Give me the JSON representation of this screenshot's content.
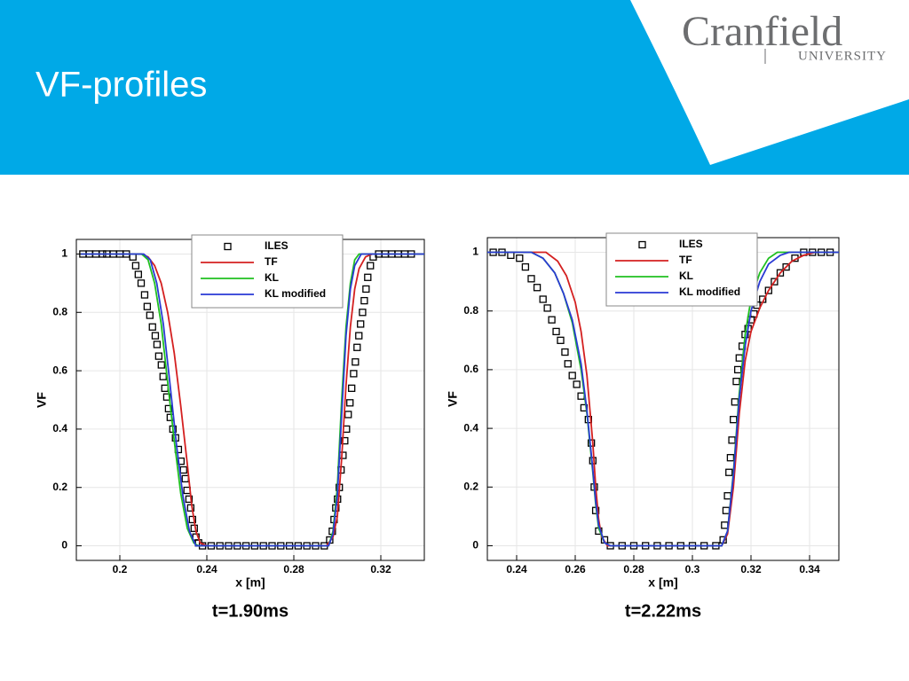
{
  "slide": {
    "title": "VF-profiles",
    "logo": {
      "name": "Cranfield",
      "sub": "UNIVERSITY"
    }
  },
  "chart_data": [
    {
      "type": "line",
      "caption": "t=1.90ms",
      "xlabel": "x [m]",
      "ylabel": "VF",
      "xlim": [
        0.18,
        0.34
      ],
      "ylim": [
        -0.05,
        1.05
      ],
      "xticks": [
        0.2,
        0.24,
        0.28,
        0.32
      ],
      "yticks": [
        0,
        0.2,
        0.4,
        0.6,
        0.8,
        1
      ],
      "grid": true,
      "legend": "upper-right",
      "series": [
        {
          "name": "ILES",
          "color": "#000000",
          "mode": "markers",
          "x": [
            0.183,
            0.186,
            0.189,
            0.192,
            0.194,
            0.197,
            0.2,
            0.203,
            0.206,
            0.2073,
            0.2085,
            0.2098,
            0.2114,
            0.2126,
            0.2138,
            0.215,
            0.2163,
            0.2171,
            0.2179,
            0.2191,
            0.2199,
            0.2207,
            0.2216,
            0.2224,
            0.2232,
            0.2244,
            0.2256,
            0.2269,
            0.2281,
            0.2293,
            0.2301,
            0.2309,
            0.2318,
            0.2326,
            0.2334,
            0.2342,
            0.235,
            0.2362,
            0.238,
            0.242,
            0.246,
            0.25,
            0.254,
            0.258,
            0.262,
            0.266,
            0.27,
            0.274,
            0.278,
            0.282,
            0.286,
            0.29,
            0.294,
            0.2965,
            0.2977,
            0.2985,
            0.2993,
            0.3001,
            0.3009,
            0.3017,
            0.3026,
            0.3034,
            0.3042,
            0.305,
            0.3058,
            0.3066,
            0.3075,
            0.3083,
            0.3091,
            0.3099,
            0.3107,
            0.3116,
            0.3124,
            0.3132,
            0.314,
            0.3152,
            0.3165,
            0.319,
            0.322,
            0.325,
            0.328,
            0.331,
            0.334
          ],
          "values": [
            1,
            1,
            1,
            1,
            1,
            1,
            1,
            1,
            0.99,
            0.96,
            0.93,
            0.9,
            0.86,
            0.82,
            0.79,
            0.75,
            0.72,
            0.69,
            0.65,
            0.62,
            0.58,
            0.54,
            0.51,
            0.47,
            0.44,
            0.4,
            0.37,
            0.33,
            0.29,
            0.26,
            0.23,
            0.19,
            0.16,
            0.13,
            0.09,
            0.06,
            0.03,
            0.01,
            0,
            0,
            0,
            0,
            0,
            0,
            0,
            0,
            0,
            0,
            0,
            0,
            0,
            0,
            0,
            0.02,
            0.05,
            0.09,
            0.13,
            0.16,
            0.2,
            0.26,
            0.31,
            0.36,
            0.4,
            0.45,
            0.49,
            0.54,
            0.59,
            0.63,
            0.68,
            0.72,
            0.76,
            0.8,
            0.84,
            0.88,
            0.92,
            0.96,
            0.99,
            1,
            1,
            1,
            1,
            1,
            1
          ]
        },
        {
          "name": "TF",
          "color": "#d42020",
          "mode": "lines",
          "x": [
            0.182,
            0.21,
            0.213,
            0.216,
            0.219,
            0.222,
            0.225,
            0.228,
            0.231,
            0.233,
            0.235,
            0.237,
            0.24,
            0.295,
            0.298,
            0.3,
            0.302,
            0.304,
            0.306,
            0.308,
            0.31,
            0.313,
            0.316,
            0.34
          ],
          "values": [
            1,
            1,
            0.99,
            0.96,
            0.9,
            0.8,
            0.66,
            0.48,
            0.28,
            0.14,
            0.05,
            0.01,
            0,
            0,
            0.03,
            0.1,
            0.3,
            0.55,
            0.75,
            0.88,
            0.95,
            0.99,
            1,
            1
          ]
        },
        {
          "name": "KL",
          "color": "#20c020",
          "mode": "lines",
          "x": [
            0.182,
            0.21,
            0.213,
            0.216,
            0.219,
            0.222,
            0.225,
            0.228,
            0.231,
            0.234,
            0.236,
            0.296,
            0.298,
            0.3,
            0.302,
            0.304,
            0.306,
            0.308,
            0.31,
            0.34
          ],
          "values": [
            1,
            1,
            0.98,
            0.9,
            0.76,
            0.56,
            0.36,
            0.18,
            0.06,
            0.01,
            0,
            0,
            0.05,
            0.2,
            0.5,
            0.75,
            0.9,
            0.98,
            1,
            1
          ]
        },
        {
          "name": "KL modified",
          "color": "#2a3ad4",
          "mode": "lines",
          "x": [
            0.182,
            0.211,
            0.214,
            0.217,
            0.22,
            0.223,
            0.226,
            0.229,
            0.232,
            0.235,
            0.296,
            0.298,
            0.3,
            0.302,
            0.304,
            0.306,
            0.308,
            0.311,
            0.34
          ],
          "values": [
            1,
            1,
            0.98,
            0.9,
            0.76,
            0.56,
            0.35,
            0.17,
            0.05,
            0,
            0,
            0.04,
            0.17,
            0.45,
            0.72,
            0.88,
            0.96,
            1,
            1
          ]
        }
      ]
    },
    {
      "type": "line",
      "caption": "t=2.22ms",
      "xlabel": "x [m]",
      "ylabel": "VF",
      "xlim": [
        0.23,
        0.35
      ],
      "ylim": [
        -0.05,
        1.05
      ],
      "xticks": [
        0.24,
        0.26,
        0.28,
        0.3,
        0.32,
        0.34
      ],
      "yticks": [
        0,
        0.2,
        0.4,
        0.6,
        0.8,
        1
      ],
      "grid": true,
      "legend": "upper-right",
      "series": [
        {
          "name": "ILES",
          "color": "#000000",
          "mode": "markers",
          "x": [
            0.232,
            0.235,
            0.238,
            0.241,
            0.243,
            0.245,
            0.247,
            0.249,
            0.2505,
            0.252,
            0.2535,
            0.255,
            0.2565,
            0.2575,
            0.259,
            0.2605,
            0.262,
            0.263,
            0.2645,
            0.2655,
            0.266,
            0.2665,
            0.267,
            0.268,
            0.27,
            0.272,
            0.276,
            0.28,
            0.284,
            0.288,
            0.292,
            0.296,
            0.3,
            0.304,
            0.308,
            0.3105,
            0.311,
            0.3115,
            0.312,
            0.3125,
            0.313,
            0.3135,
            0.314,
            0.3145,
            0.315,
            0.3155,
            0.316,
            0.317,
            0.318,
            0.319,
            0.32,
            0.321,
            0.322,
            0.324,
            0.326,
            0.328,
            0.33,
            0.332,
            0.335,
            0.338,
            0.341,
            0.344,
            0.347
          ],
          "values": [
            1,
            1,
            0.99,
            0.98,
            0.95,
            0.91,
            0.88,
            0.84,
            0.81,
            0.77,
            0.73,
            0.7,
            0.66,
            0.62,
            0.58,
            0.55,
            0.51,
            0.47,
            0.43,
            0.35,
            0.29,
            0.2,
            0.12,
            0.05,
            0.02,
            0,
            0,
            0,
            0,
            0,
            0,
            0,
            0,
            0,
            0,
            0.02,
            0.07,
            0.12,
            0.17,
            0.25,
            0.3,
            0.36,
            0.43,
            0.49,
            0.56,
            0.6,
            0.64,
            0.68,
            0.72,
            0.74,
            0.77,
            0.79,
            0.82,
            0.84,
            0.87,
            0.9,
            0.93,
            0.95,
            0.98,
            1,
            1,
            1,
            1
          ]
        },
        {
          "name": "TF",
          "color": "#d42020",
          "mode": "lines",
          "x": [
            0.23,
            0.25,
            0.254,
            0.257,
            0.26,
            0.262,
            0.264,
            0.266,
            0.267,
            0.268,
            0.269,
            0.271,
            0.31,
            0.312,
            0.314,
            0.316,
            0.318,
            0.32,
            0.323,
            0.326,
            0.33,
            0.334,
            0.338,
            0.342,
            0.35
          ],
          "values": [
            1,
            1,
            0.97,
            0.92,
            0.83,
            0.73,
            0.58,
            0.35,
            0.2,
            0.09,
            0.03,
            0,
            0,
            0.04,
            0.2,
            0.45,
            0.63,
            0.73,
            0.81,
            0.87,
            0.93,
            0.97,
            0.99,
            1,
            1
          ]
        },
        {
          "name": "KL",
          "color": "#20c020",
          "mode": "lines",
          "x": [
            0.23,
            0.245,
            0.249,
            0.253,
            0.256,
            0.259,
            0.262,
            0.264,
            0.266,
            0.267,
            0.268,
            0.27,
            0.272,
            0.31,
            0.312,
            0.314,
            0.316,
            0.318,
            0.32,
            0.323,
            0.326,
            0.329,
            0.35
          ],
          "values": [
            1,
            1,
            0.98,
            0.93,
            0.86,
            0.76,
            0.6,
            0.45,
            0.25,
            0.14,
            0.06,
            0.01,
            0,
            0,
            0.05,
            0.25,
            0.52,
            0.72,
            0.84,
            0.93,
            0.98,
            1,
            1
          ]
        },
        {
          "name": "KL modified",
          "color": "#2a3ad4",
          "mode": "lines",
          "x": [
            0.23,
            0.245,
            0.249,
            0.253,
            0.256,
            0.259,
            0.262,
            0.264,
            0.266,
            0.267,
            0.268,
            0.27,
            0.272,
            0.31,
            0.312,
            0.314,
            0.316,
            0.318,
            0.32,
            0.323,
            0.326,
            0.33,
            0.333,
            0.35
          ],
          "values": [
            1,
            1,
            0.98,
            0.93,
            0.86,
            0.77,
            0.62,
            0.46,
            0.26,
            0.15,
            0.07,
            0.01,
            0,
            0,
            0.05,
            0.24,
            0.5,
            0.68,
            0.8,
            0.9,
            0.96,
            0.99,
            1,
            1
          ]
        }
      ]
    }
  ]
}
